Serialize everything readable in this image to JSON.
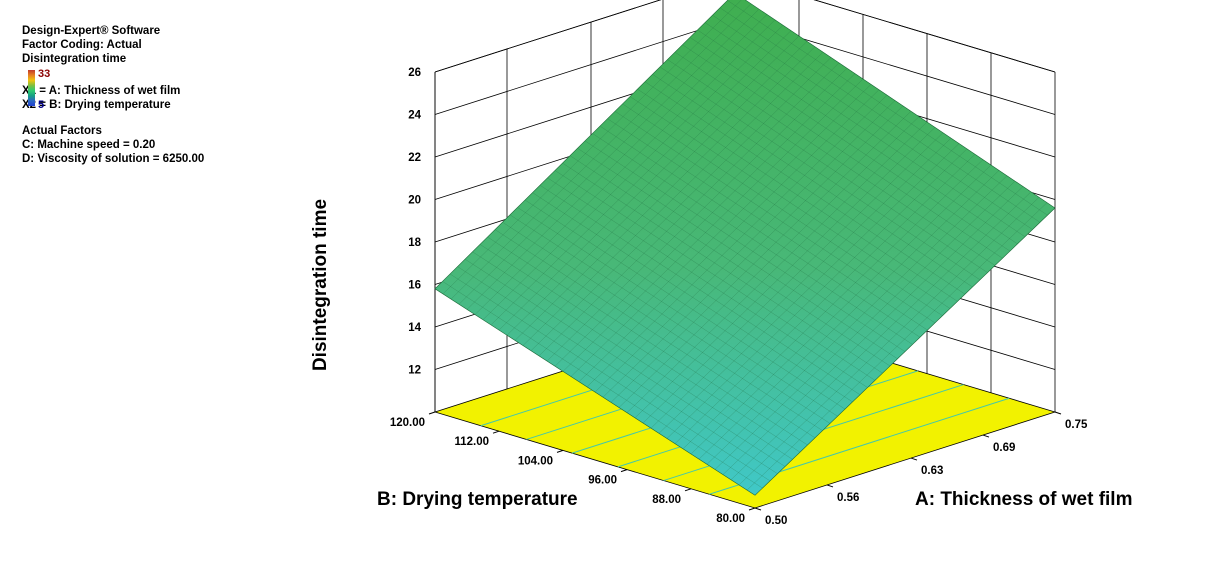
{
  "legend": {
    "software": "Design-Expert® Software",
    "coding": "Factor Coding: Actual",
    "response": "Disintegration time",
    "colorbar": {
      "max": "33",
      "min": "5"
    },
    "x1": "X1 = A: Thickness of wet film",
    "x2": "X2 = B: Drying temperature",
    "actual_header": "Actual Factors",
    "factor_c": "C: Machine speed = 0.20",
    "factor_d": "D: Viscosity of solution = 6250.00"
  },
  "chart_data": {
    "type": "surface3d",
    "zlabel": "Disintegration time",
    "xlabel": "A: Thickness of wet film",
    "ylabel": "B: Drying temperature",
    "x_ticks": [
      "0.50",
      "0.56",
      "0.63",
      "0.69",
      "0.75"
    ],
    "y_ticks": [
      "80.00",
      "88.00",
      "96.00",
      "104.00",
      "112.00",
      "120.00"
    ],
    "z_ticks": [
      "12",
      "14",
      "16",
      "18",
      "20",
      "22",
      "24",
      "26"
    ],
    "xlim": [
      0.5,
      0.75
    ],
    "ylim": [
      80,
      120
    ],
    "zlim": [
      10,
      26
    ],
    "corners": [
      {
        "x": 0.5,
        "y": 80,
        "z": 10.6
      },
      {
        "x": 0.75,
        "y": 80,
        "z": 19.6
      },
      {
        "x": 0.5,
        "y": 120,
        "z": 15.8
      },
      {
        "x": 0.75,
        "y": 120,
        "z": 25.2
      }
    ],
    "colors": {
      "floor": "#f2f200",
      "surface_low": "#40c8c8",
      "surface_high": "#3fae4f"
    }
  }
}
